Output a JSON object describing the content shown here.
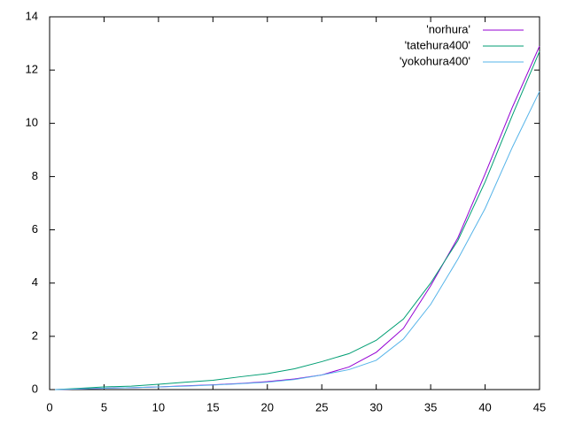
{
  "chart_data": {
    "type": "line",
    "x": [
      0.5,
      2.5,
      5,
      7.5,
      10,
      12.5,
      15,
      17.5,
      20,
      22.5,
      25,
      27.5,
      30,
      32.5,
      35,
      37.5,
      40,
      42.5,
      45
    ],
    "series": [
      {
        "name": "'norhura'",
        "color": "#9400d3",
        "values": [
          0,
          0.02,
          0.05,
          0.07,
          0.1,
          0.14,
          0.18,
          0.23,
          0.3,
          0.4,
          0.55,
          0.85,
          1.4,
          2.3,
          3.9,
          5.7,
          8.1,
          10.6,
          12.9
        ]
      },
      {
        "name": "'tatehura400'",
        "color": "#009e73",
        "values": [
          0,
          0.04,
          0.1,
          0.13,
          0.2,
          0.28,
          0.35,
          0.48,
          0.6,
          0.78,
          1.05,
          1.35,
          1.85,
          2.65,
          4.0,
          5.6,
          7.8,
          10.3,
          12.7
        ]
      },
      {
        "name": "'yokohura400'",
        "color": "#56b4e9",
        "values": [
          0,
          0.02,
          0.05,
          0.07,
          0.1,
          0.13,
          0.17,
          0.22,
          0.28,
          0.38,
          0.55,
          0.75,
          1.1,
          1.9,
          3.2,
          4.9,
          6.8,
          9.1,
          11.2
        ]
      }
    ],
    "xlim": [
      0,
      45
    ],
    "xticks": [
      0,
      5,
      10,
      15,
      20,
      25,
      30,
      35,
      40,
      45
    ],
    "ylim": [
      0,
      14
    ],
    "yticks": [
      0,
      2,
      4,
      6,
      8,
      10,
      12,
      14
    ],
    "legend": "top-right"
  }
}
